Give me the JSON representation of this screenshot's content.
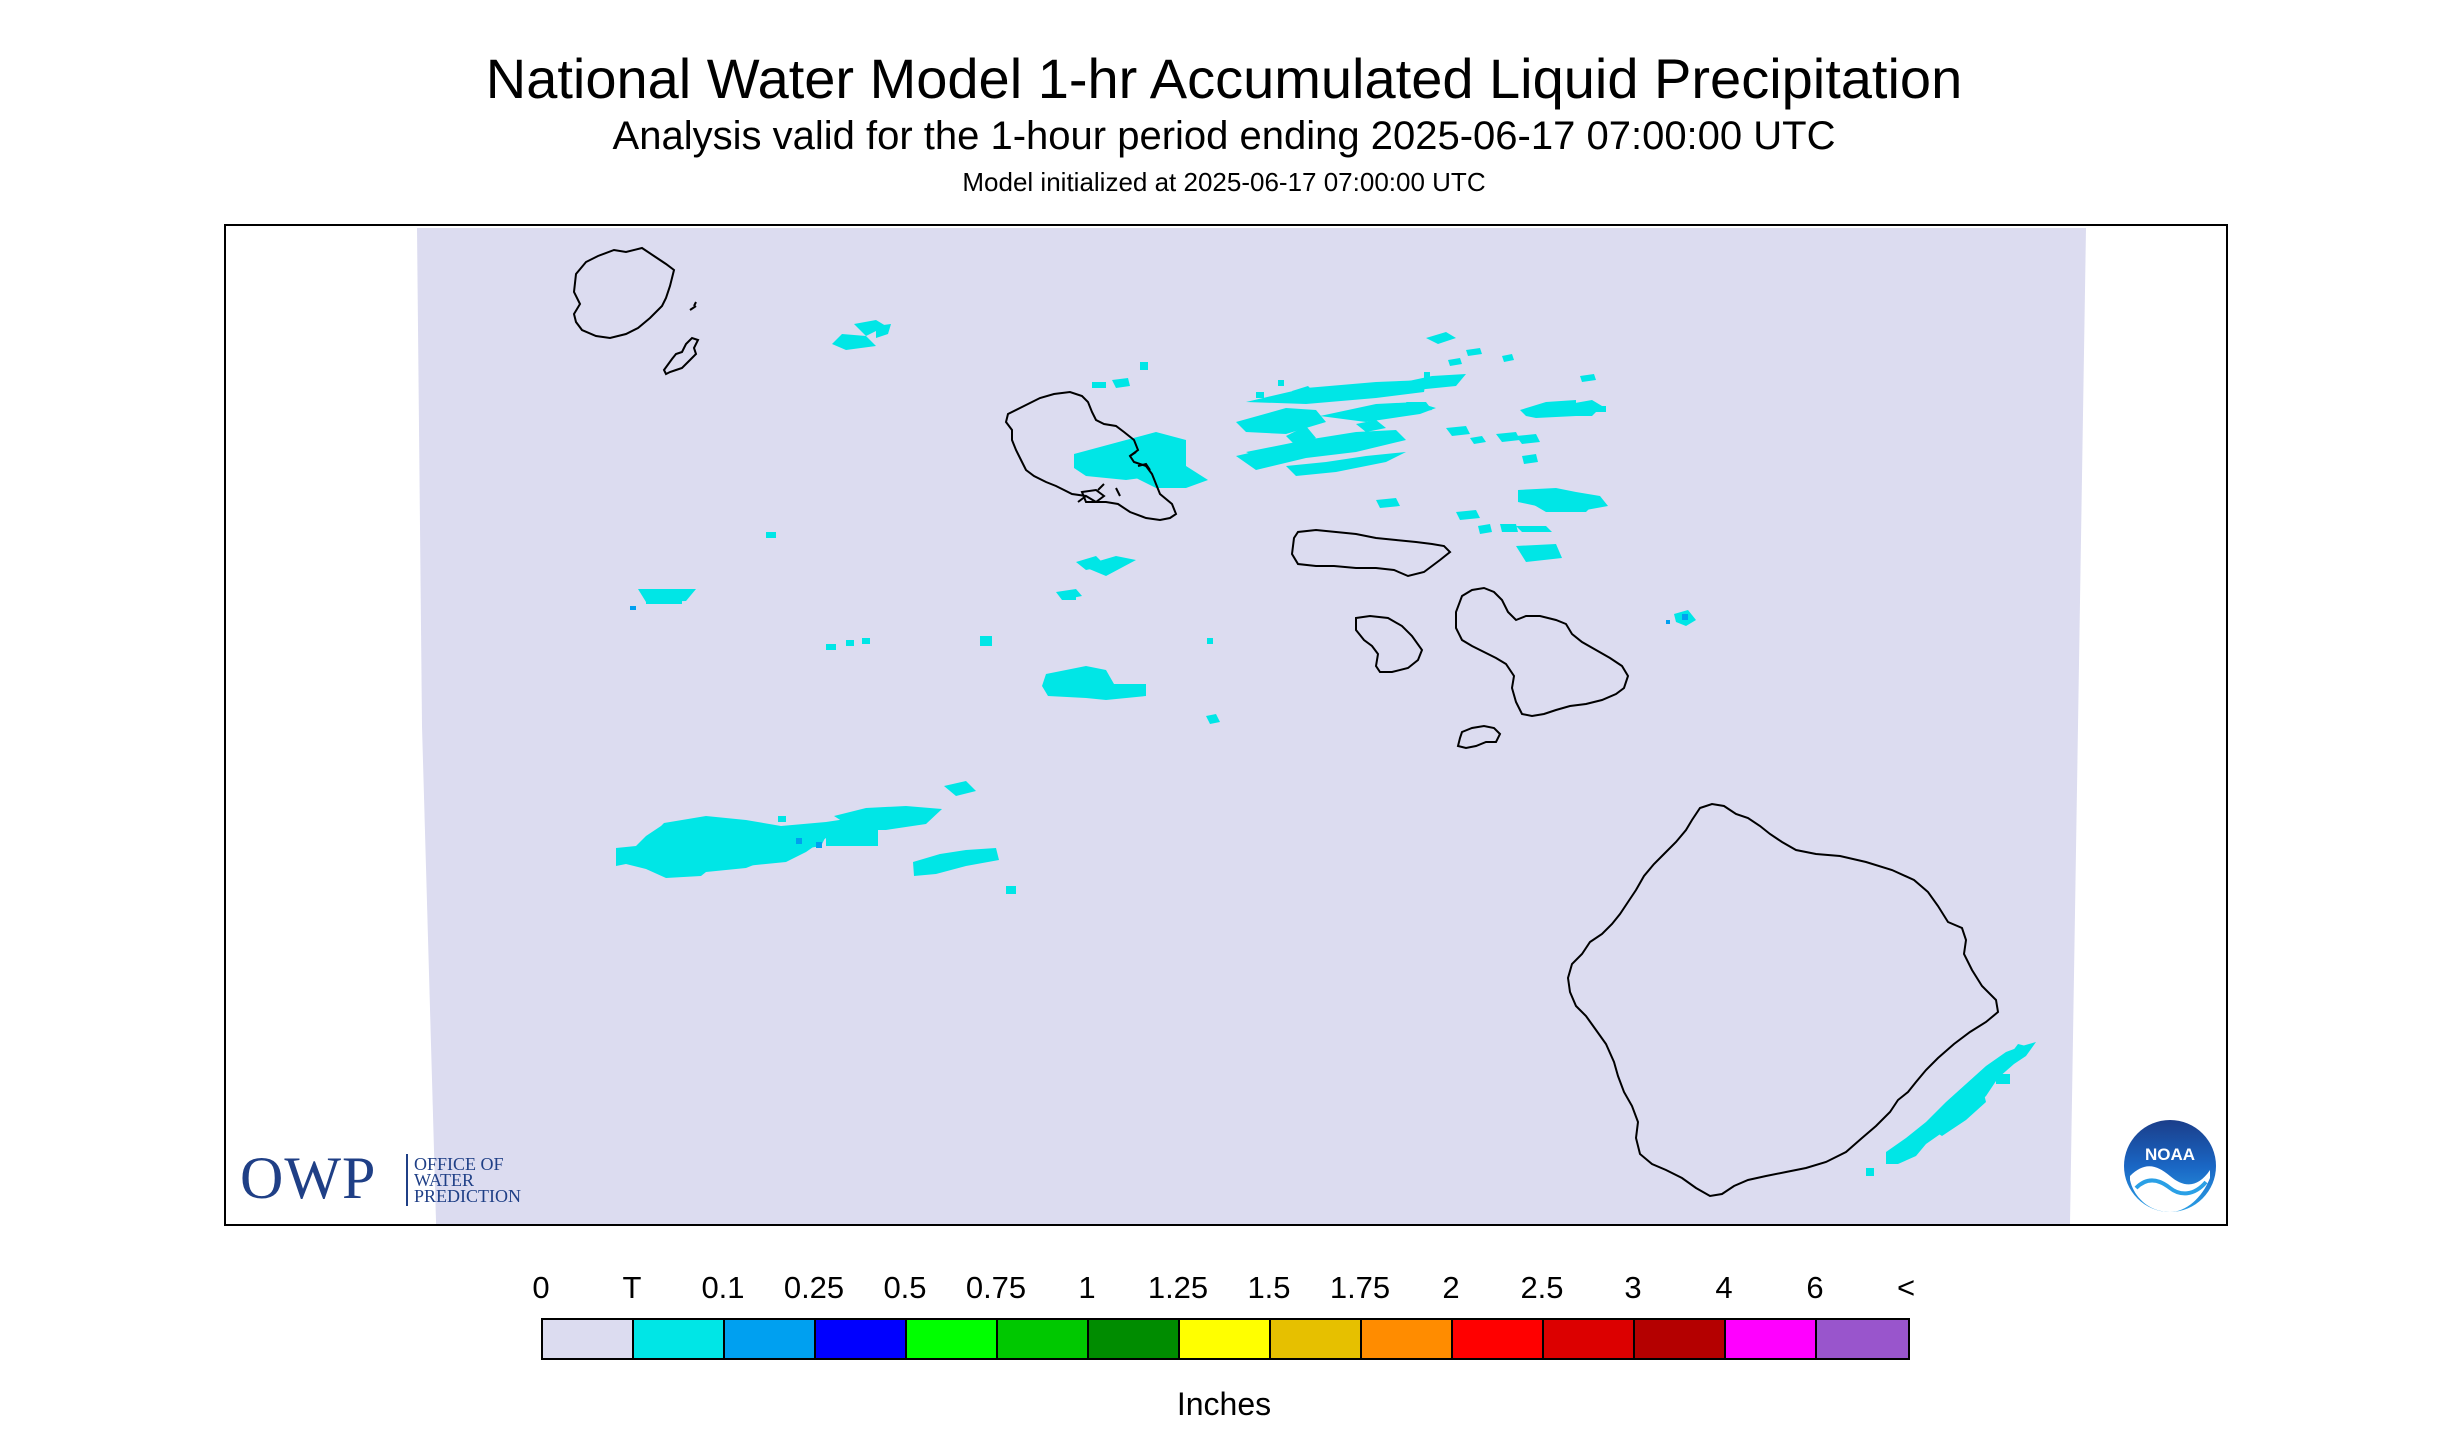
{
  "title": "National Water Model 1-hr Accumulated Liquid Precipitation",
  "subtitle": "Analysis valid for the 1-hour period ending 2025-06-17 07:00:00 UTC",
  "init_line": "Model initialized at 2025-06-17 07:00:00 UTC",
  "logos": {
    "owp_abbrev": "OWP",
    "owp_line1": "OFFICE OF",
    "owp_line2": "WATER",
    "owp_line3": "PREDICTION",
    "noaa_text": "NOAA"
  },
  "colors": {
    "domain_fill": "#dcdcf0",
    "trace_precip": "#00e6e6",
    "coastline": "#000000"
  },
  "legend": {
    "labels": [
      "0",
      "T",
      "0.1",
      "0.25",
      "0.5",
      "0.75",
      "1",
      "1.25",
      "1.5",
      "1.75",
      "2",
      "2.5",
      "3",
      "4",
      "6",
      "<"
    ],
    "colors": [
      "#dcdcf0",
      "#00e6e6",
      "#00a0f0",
      "#0000ff",
      "#00ff00",
      "#00c800",
      "#008c00",
      "#ffff00",
      "#e6c000",
      "#ff8c00",
      "#ff0000",
      "#dc0000",
      "#b40000",
      "#ff00ff",
      "#9955cc"
    ],
    "units": "Inches"
  }
}
